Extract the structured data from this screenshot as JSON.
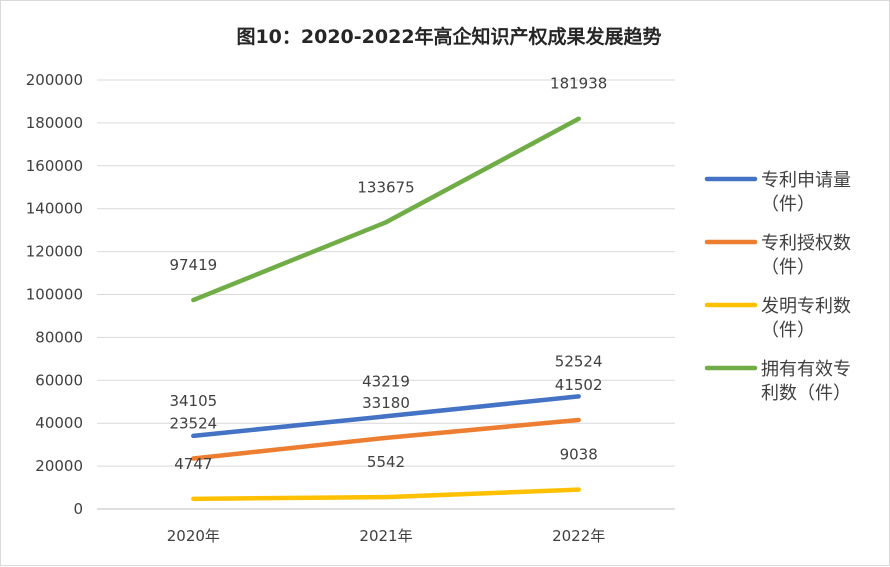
{
  "chart_data": {
    "type": "line",
    "title": "图10：2020-2022年高企知识产权成果发展趋势",
    "categories": [
      "2020年",
      "2021年",
      "2022年"
    ],
    "ylim": [
      0,
      200000
    ],
    "yticks": [
      "0",
      "20000",
      "40000",
      "60000",
      "80000",
      "100000",
      "120000",
      "140000",
      "160000",
      "180000",
      "200000"
    ],
    "grid": true,
    "legend_position": "right",
    "series": [
      {
        "name": "专利申请量（件）",
        "legend_lines": [
          "专利申请量",
          "（件）"
        ],
        "color": "#4472C4",
        "values": [
          34105,
          43219,
          52524
        ]
      },
      {
        "name": "专利授权数（件）",
        "legend_lines": [
          "专利授权数",
          "（件）"
        ],
        "color": "#ED7D31",
        "values": [
          23524,
          33180,
          41502
        ]
      },
      {
        "name": "发明专利数（件）",
        "legend_lines": [
          "发明专利数",
          "（件）"
        ],
        "color": "#FFC000",
        "values": [
          4747,
          5542,
          9038
        ]
      },
      {
        "name": "拥有有效专利数（件）",
        "legend_lines": [
          "拥有有效专",
          "利数（件）"
        ],
        "color": "#70AD47",
        "values": [
          97419,
          133675,
          181938
        ]
      }
    ]
  }
}
